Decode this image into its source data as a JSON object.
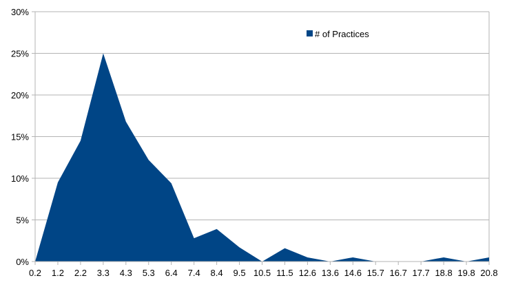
{
  "chart_data": {
    "type": "area",
    "categories": [
      "0.2",
      "1.2",
      "2.2",
      "3.3",
      "4.3",
      "5.3",
      "6.4",
      "7.4",
      "8.4",
      "9.5",
      "10.5",
      "11.5",
      "12.6",
      "13.6",
      "14.6",
      "15.7",
      "16.7",
      "17.7",
      "18.8",
      "19.8",
      "20.8"
    ],
    "series": [
      {
        "name": "# of Practices",
        "values": [
          0.0,
          9.5,
          14.5,
          25.0,
          16.8,
          12.2,
          9.4,
          2.8,
          3.9,
          1.7,
          0.0,
          1.6,
          0.5,
          0.0,
          0.5,
          0.0,
          0.0,
          0.0,
          0.5,
          0.0,
          0.5
        ],
        "color": "#004586"
      }
    ],
    "yticks": [
      "0%",
      "5%",
      "10%",
      "15%",
      "20%",
      "25%",
      "30%"
    ],
    "ylim": [
      0,
      30
    ],
    "y_unit": "percent",
    "grid": true,
    "legend_position": "top-right",
    "title": "",
    "xlabel": "",
    "ylabel": ""
  }
}
